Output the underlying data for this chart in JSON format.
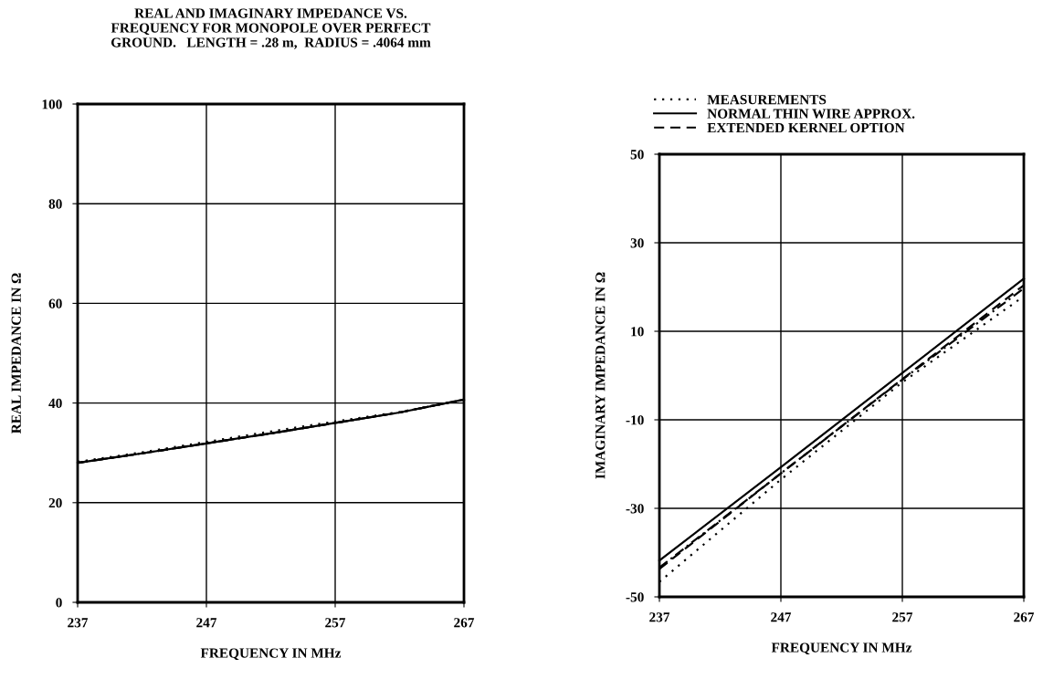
{
  "chart_data": [
    {
      "type": "line",
      "title": "REAL AND IMAGINARY IMPEDANCE VS.\nFREQUENCY FOR MONOPOLE OVER PERFECT\nGROUND.   LENGTH = .28 m,  RADIUS = .4064 mm",
      "xlabel": "FREQUENCY IN MHz",
      "ylabel": "REAL IMPEDANCE IN Ω",
      "x": [
        237,
        242,
        247,
        252,
        257,
        262,
        267
      ],
      "xlim": [
        237,
        267
      ],
      "ylim": [
        0,
        100
      ],
      "xticks": [
        237,
        247,
        257,
        267
      ],
      "yticks": [
        0,
        20,
        40,
        60,
        80,
        100
      ],
      "grid": true,
      "series": [
        {
          "color": "#000000",
          "line_style": "dotted",
          "values": [
            28.2,
            30.1,
            32.2,
            34.3,
            36.3,
            38.2,
            40.6
          ]
        },
        {
          "color": "#000000",
          "line_style": "dashdot",
          "values": [
            28.0,
            29.9,
            31.9,
            33.9,
            36.0,
            38.1,
            40.7
          ]
        },
        {
          "color": "#000000",
          "line_style": "solid",
          "values": [
            28.0,
            29.9,
            31.9,
            33.9,
            36.0,
            38.1,
            40.7
          ]
        },
        {
          "color": "#000000",
          "line_style": "dashed",
          "values": [
            28.0,
            29.9,
            31.9,
            33.9,
            36.0,
            38.1,
            40.7
          ]
        }
      ]
    },
    {
      "type": "line",
      "xlabel": "FREQUENCY IN MHz",
      "ylabel": "IMAGINARY IMPEDANCE IN Ω",
      "x": [
        237,
        247,
        257,
        267
      ],
      "xlim": [
        237,
        267
      ],
      "ylim": [
        -50,
        50
      ],
      "xticks": [
        237,
        247,
        257,
        267
      ],
      "yticks": [
        -50,
        -30,
        -10,
        10,
        30,
        50
      ],
      "grid": true,
      "legend": "top",
      "series": [
        {
          "name": "MEASUREMENTS",
          "color": "#000000",
          "line_style": "dotted",
          "values": [
            -46.6,
            -23.5,
            -1.5,
            17.9
          ]
        },
        {
          "color": "#000000",
          "line_style": "dashdot",
          "values": [
            -43.4,
            -22.1,
            -0.9,
            19.7
          ]
        },
        {
          "name": "NORMAL THIN WIRE APPROX.",
          "color": "#000000",
          "line_style": "solid",
          "values": [
            -41.8,
            -20.7,
            0.6,
            21.9
          ]
        },
        {
          "name": "EXTENDED KERNEL OPTION",
          "color": "#000000",
          "line_style": "dashed",
          "values": [
            -43.7,
            -22.1,
            -0.8,
            20.4
          ]
        }
      ]
    }
  ]
}
